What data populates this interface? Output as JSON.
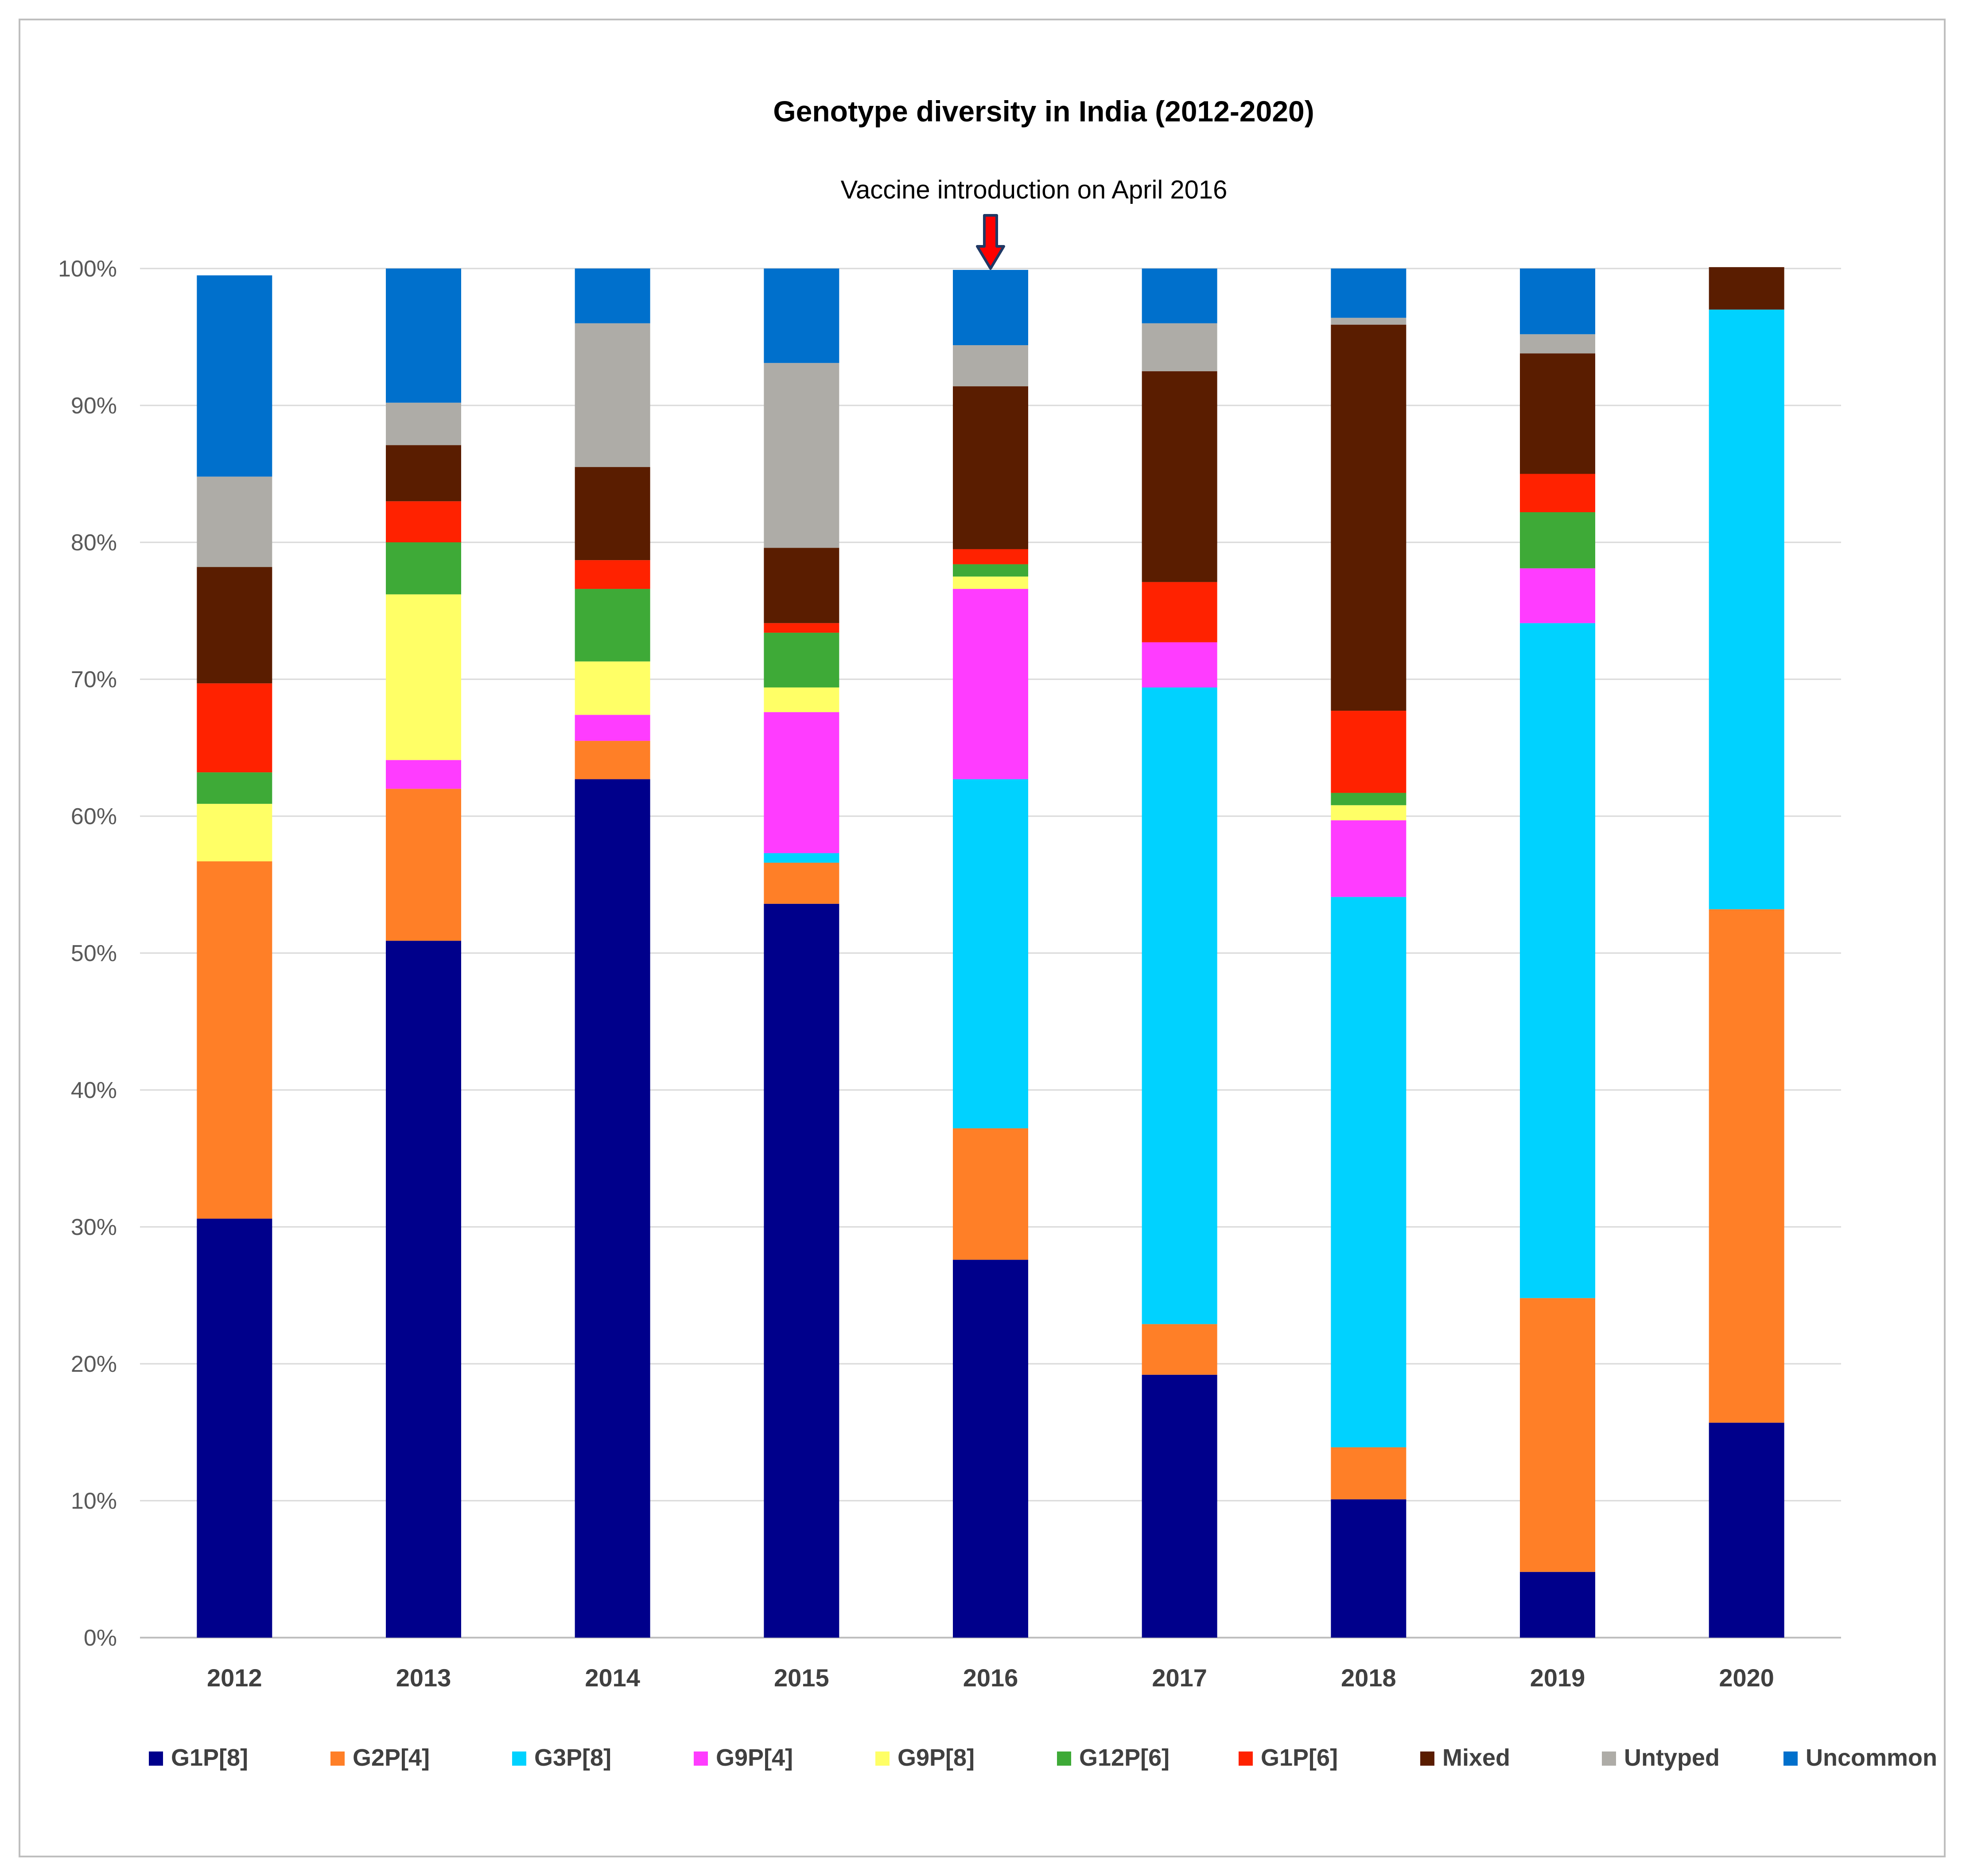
{
  "chart_data": {
    "type": "bar",
    "stacked": true,
    "title": "Genotype diversity in India (2012-2020)",
    "annotation": {
      "text": "Vaccine introduction on April 2016",
      "category": "2016",
      "arrow_colors": {
        "fill": "#ff0000",
        "stroke": "#1f3864"
      }
    },
    "categories": [
      "2012",
      "2013",
      "2014",
      "2015",
      "2016",
      "2017",
      "2018",
      "2019",
      "2020"
    ],
    "ylim": [
      0,
      100
    ],
    "yticks": [
      0,
      10,
      20,
      30,
      40,
      50,
      60,
      70,
      80,
      90,
      100
    ],
    "ytick_labels": [
      "0%",
      "10%",
      "20%",
      "30%",
      "40%",
      "50%",
      "60%",
      "70%",
      "80%",
      "90%",
      "100%"
    ],
    "xlabel": "",
    "ylabel": "",
    "grid": true,
    "legend_position": "bottom",
    "series": [
      {
        "name": "G1P[8]",
        "color": "#00008b",
        "values": [
          30.6,
          50.9,
          62.7,
          53.6,
          27.6,
          19.2,
          10.1,
          4.8,
          15.7
        ]
      },
      {
        "name": "G2P[4]",
        "color": "#ff7f27",
        "values": [
          26.1,
          11.1,
          2.8,
          3.0,
          9.6,
          3.7,
          3.8,
          20.0,
          37.5
        ]
      },
      {
        "name": "G3P[8]",
        "color": "#00d2ff",
        "values": [
          0,
          0,
          0,
          0.7,
          25.5,
          46.5,
          40.2,
          49.3,
          43.8
        ]
      },
      {
        "name": "G9P[4]",
        "color": "#ff3cff",
        "values": [
          0,
          2.1,
          1.9,
          10.3,
          13.9,
          3.3,
          5.6,
          4.0,
          0
        ]
      },
      {
        "name": "G9P[8]",
        "color": "#ffff66",
        "values": [
          4.2,
          12.1,
          3.9,
          1.8,
          0.9,
          0,
          1.1,
          0,
          0
        ]
      },
      {
        "name": "G12P[6]",
        "color": "#3eaa37",
        "values": [
          2.3,
          3.8,
          5.3,
          4.0,
          0.9,
          0,
          0.9,
          4.1,
          0
        ]
      },
      {
        "name": "G1P[6]",
        "color": "#ff2200",
        "values": [
          6.5,
          3.0,
          2.1,
          0.7,
          1.1,
          4.4,
          6.0,
          2.8,
          0
        ]
      },
      {
        "name": "Mixed",
        "color": "#5a1d00",
        "values": [
          8.5,
          4.1,
          6.8,
          5.5,
          11.9,
          15.4,
          28.2,
          8.8,
          3.1
        ]
      },
      {
        "name": "Untyped",
        "color": "#aeaca7",
        "values": [
          6.6,
          3.1,
          10.5,
          13.5,
          3.0,
          3.5,
          0.5,
          1.4,
          0
        ]
      },
      {
        "name": "Uncommon",
        "color": "#0070cc",
        "values": [
          14.7,
          9.8,
          4.0,
          6.9,
          5.5,
          4.0,
          3.6,
          4.8,
          0
        ]
      }
    ]
  }
}
